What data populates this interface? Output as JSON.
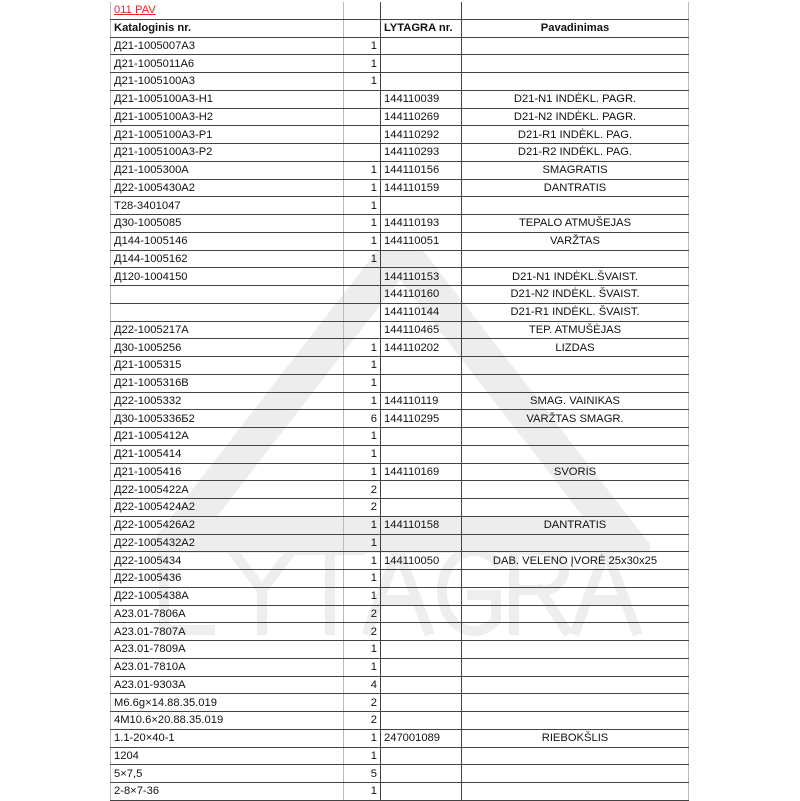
{
  "title": "011 PAV",
  "watermark": "LYTAGRA",
  "accent_color": "#e8281e",
  "headers": [
    "Kataloginis nr.",
    "",
    "LYTAGRA nr.",
    "Pavadinimas"
  ],
  "rows": [
    [
      "Д21-1005007А3",
      "1",
      "",
      ""
    ],
    [
      "Д21-1005011А6",
      "1",
      "",
      ""
    ],
    [
      "Д21-1005100А3",
      "1",
      "",
      ""
    ],
    [
      "Д21-1005100А3-H1",
      "",
      "144110039",
      "D21-N1 INDĖKL. PAGR."
    ],
    [
      "Д21-1005100А3-H2",
      "",
      "144110269",
      "D21-N2 INDĖKL. PAGR."
    ],
    [
      "Д21-1005100А3-P1",
      "",
      "144110292",
      "D21-R1 INDĖKL. PAG."
    ],
    [
      "Д21-1005100А3-P2",
      "",
      "144110293",
      "D21-R2 INDĖKL. PAG."
    ],
    [
      "Д21-1005300А",
      "1",
      "144110156",
      "SMAGRATIS"
    ],
    [
      "Д22-1005430А2",
      "1",
      "144110159",
      "DANTRATIS"
    ],
    [
      "T28-3401047",
      "1",
      "",
      ""
    ],
    [
      "Д30-1005085",
      "1",
      "144110193",
      "TEPALO ATMUŠEJAS"
    ],
    [
      "Д144-1005146",
      "1",
      "144110051",
      "VARŽTAS"
    ],
    [
      "Д144-1005162",
      "1",
      "",
      ""
    ],
    [
      "Д120-1004150",
      "",
      "144110153",
      "D21-N1 INDĖKL.ŠVAIST."
    ],
    [
      "",
      "",
      "144110160",
      "D21-N2 INDĖKL. ŠVAIST."
    ],
    [
      "",
      "",
      "144110144",
      "D21-R1 INDĖKL. ŠVAIST."
    ],
    [
      "Д22-1005217А",
      "",
      "144110465",
      "TEP. ATMUŠĖJAS"
    ],
    [
      "Д30-1005256",
      "1",
      "144110202",
      "LIZDAS"
    ],
    [
      "Д21-1005315",
      "1",
      "",
      ""
    ],
    [
      "Д21-1005316В",
      "1",
      "",
      ""
    ],
    [
      "Д22-1005332",
      "1",
      "144110119",
      "SMAG. VAINIKAS"
    ],
    [
      "Д30-1005336Б2",
      "6",
      "144110295",
      "VARŽTAS SMAGR."
    ],
    [
      "Д21-1005412А",
      "1",
      "",
      ""
    ],
    [
      "Д21-1005414",
      "1",
      "",
      ""
    ],
    [
      "Д21-1005416",
      "1",
      "144110169",
      "SVORIS"
    ],
    [
      "Д22-1005422А",
      "2",
      "",
      ""
    ],
    [
      "Д22-1005424А2",
      "2",
      "",
      ""
    ],
    [
      "Д22-1005426А2",
      "1",
      "144110158",
      "DANTRATIS"
    ],
    [
      "Д22-1005432А2",
      "1",
      "",
      ""
    ],
    [
      "Д22-1005434",
      "1",
      "144110050",
      "DAB. VELENO ĮVORĖ 25x30x25"
    ],
    [
      "Д22-1005436",
      "1",
      "",
      ""
    ],
    [
      "Д22-1005438А",
      "1",
      "",
      ""
    ],
    [
      "А23.01-7806А",
      "2",
      "",
      ""
    ],
    [
      "А23.01-7807А",
      "2",
      "",
      ""
    ],
    [
      "А23.01-7809А",
      "1",
      "",
      ""
    ],
    [
      "А23.01-7810А",
      "1",
      "",
      ""
    ],
    [
      "А23.01-9303А",
      "4",
      "",
      ""
    ],
    [
      "M6.6g×14.88.35.019",
      "2",
      "",
      ""
    ],
    [
      "4M10.6×20.88.35.019",
      "2",
      "",
      ""
    ],
    [
      "1.1-20×40-1",
      "1",
      "247001089",
      "RIEBOKŠLIS"
    ],
    [
      "1204",
      "1",
      "",
      ""
    ],
    [
      "5×7,5",
      "5",
      "",
      ""
    ],
    [
      "2-8×7-36",
      "1",
      "",
      ""
    ]
  ]
}
